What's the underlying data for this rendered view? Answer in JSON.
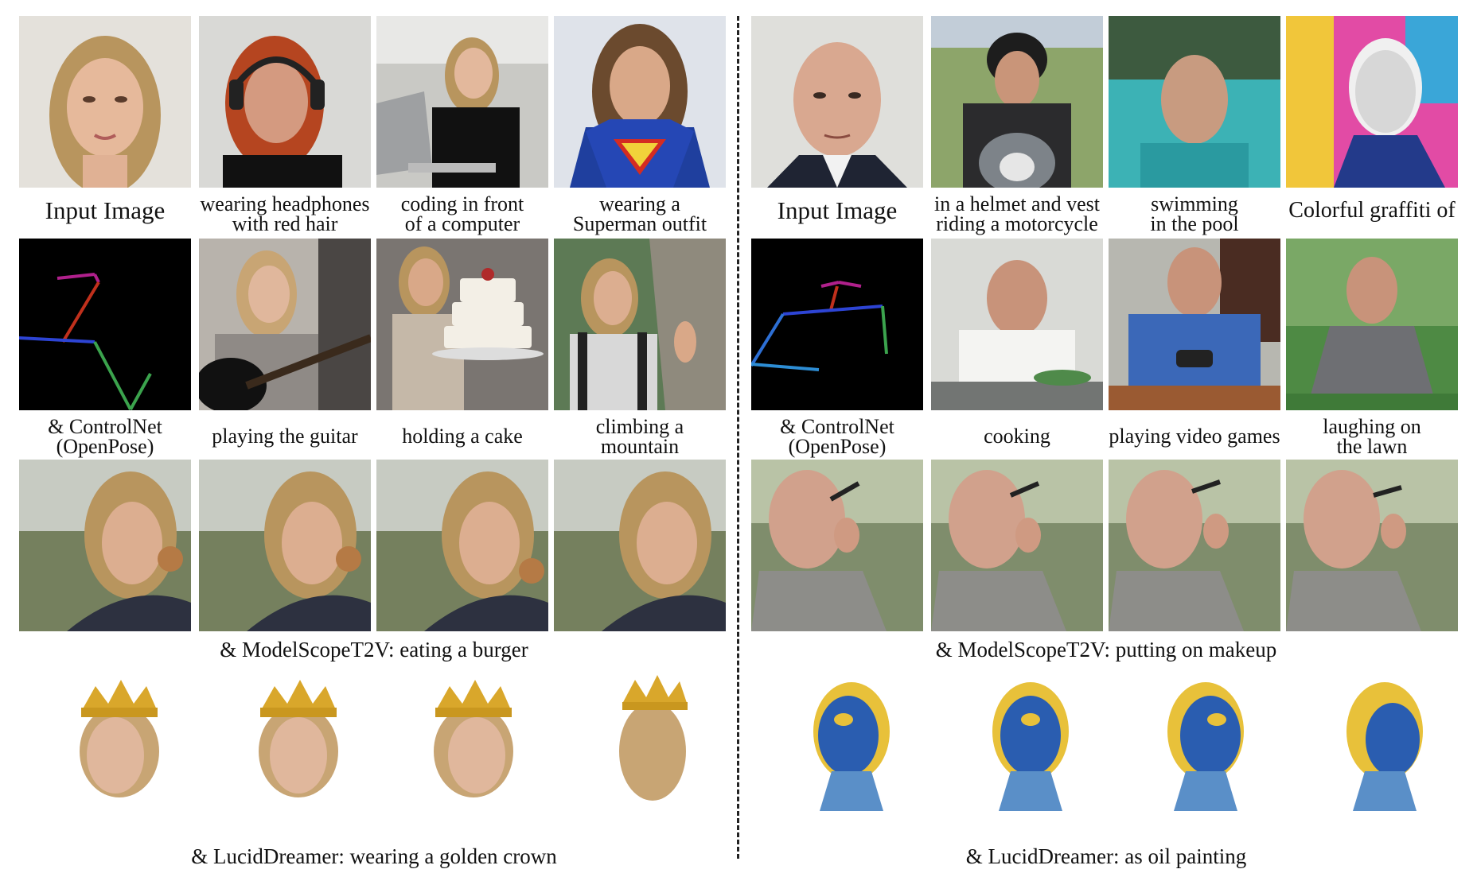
{
  "left": {
    "row1": [
      "Input Image",
      "wearing headphones\nwith red hair",
      "coding in front\nof a computer",
      "wearing a\nSuperman outfit"
    ],
    "row2": [
      "& ControlNet\n(OpenPose)",
      "playing the guitar",
      "holding a cake",
      "climbing a\nmountain"
    ],
    "video_caption": "& ModelScopeT2V: eating a burger",
    "three_d_caption": "& LucidDreamer: wearing a golden crown"
  },
  "right": {
    "row1": [
      "Input Image",
      "in a helmet and vest\nriding a motorcycle",
      "swimming\nin the pool",
      "Colorful graffiti of"
    ],
    "row2": [
      "& ControlNet\n(OpenPose)",
      "cooking",
      "playing video games",
      "laughing on\nthe lawn"
    ],
    "video_caption": "& ModelScopeT2V: putting on makeup",
    "three_d_caption": "& LucidDreamer: as oil painting"
  },
  "colors": {
    "woman_hair": "#b8955e",
    "skin_light": "#e6b99b",
    "man_skin": "#d9a890",
    "pose_background": "#000000",
    "oil_blue": "#2a5db0",
    "oil_yellow": "#e8c13a",
    "crown_gold": "#d9a72b"
  }
}
